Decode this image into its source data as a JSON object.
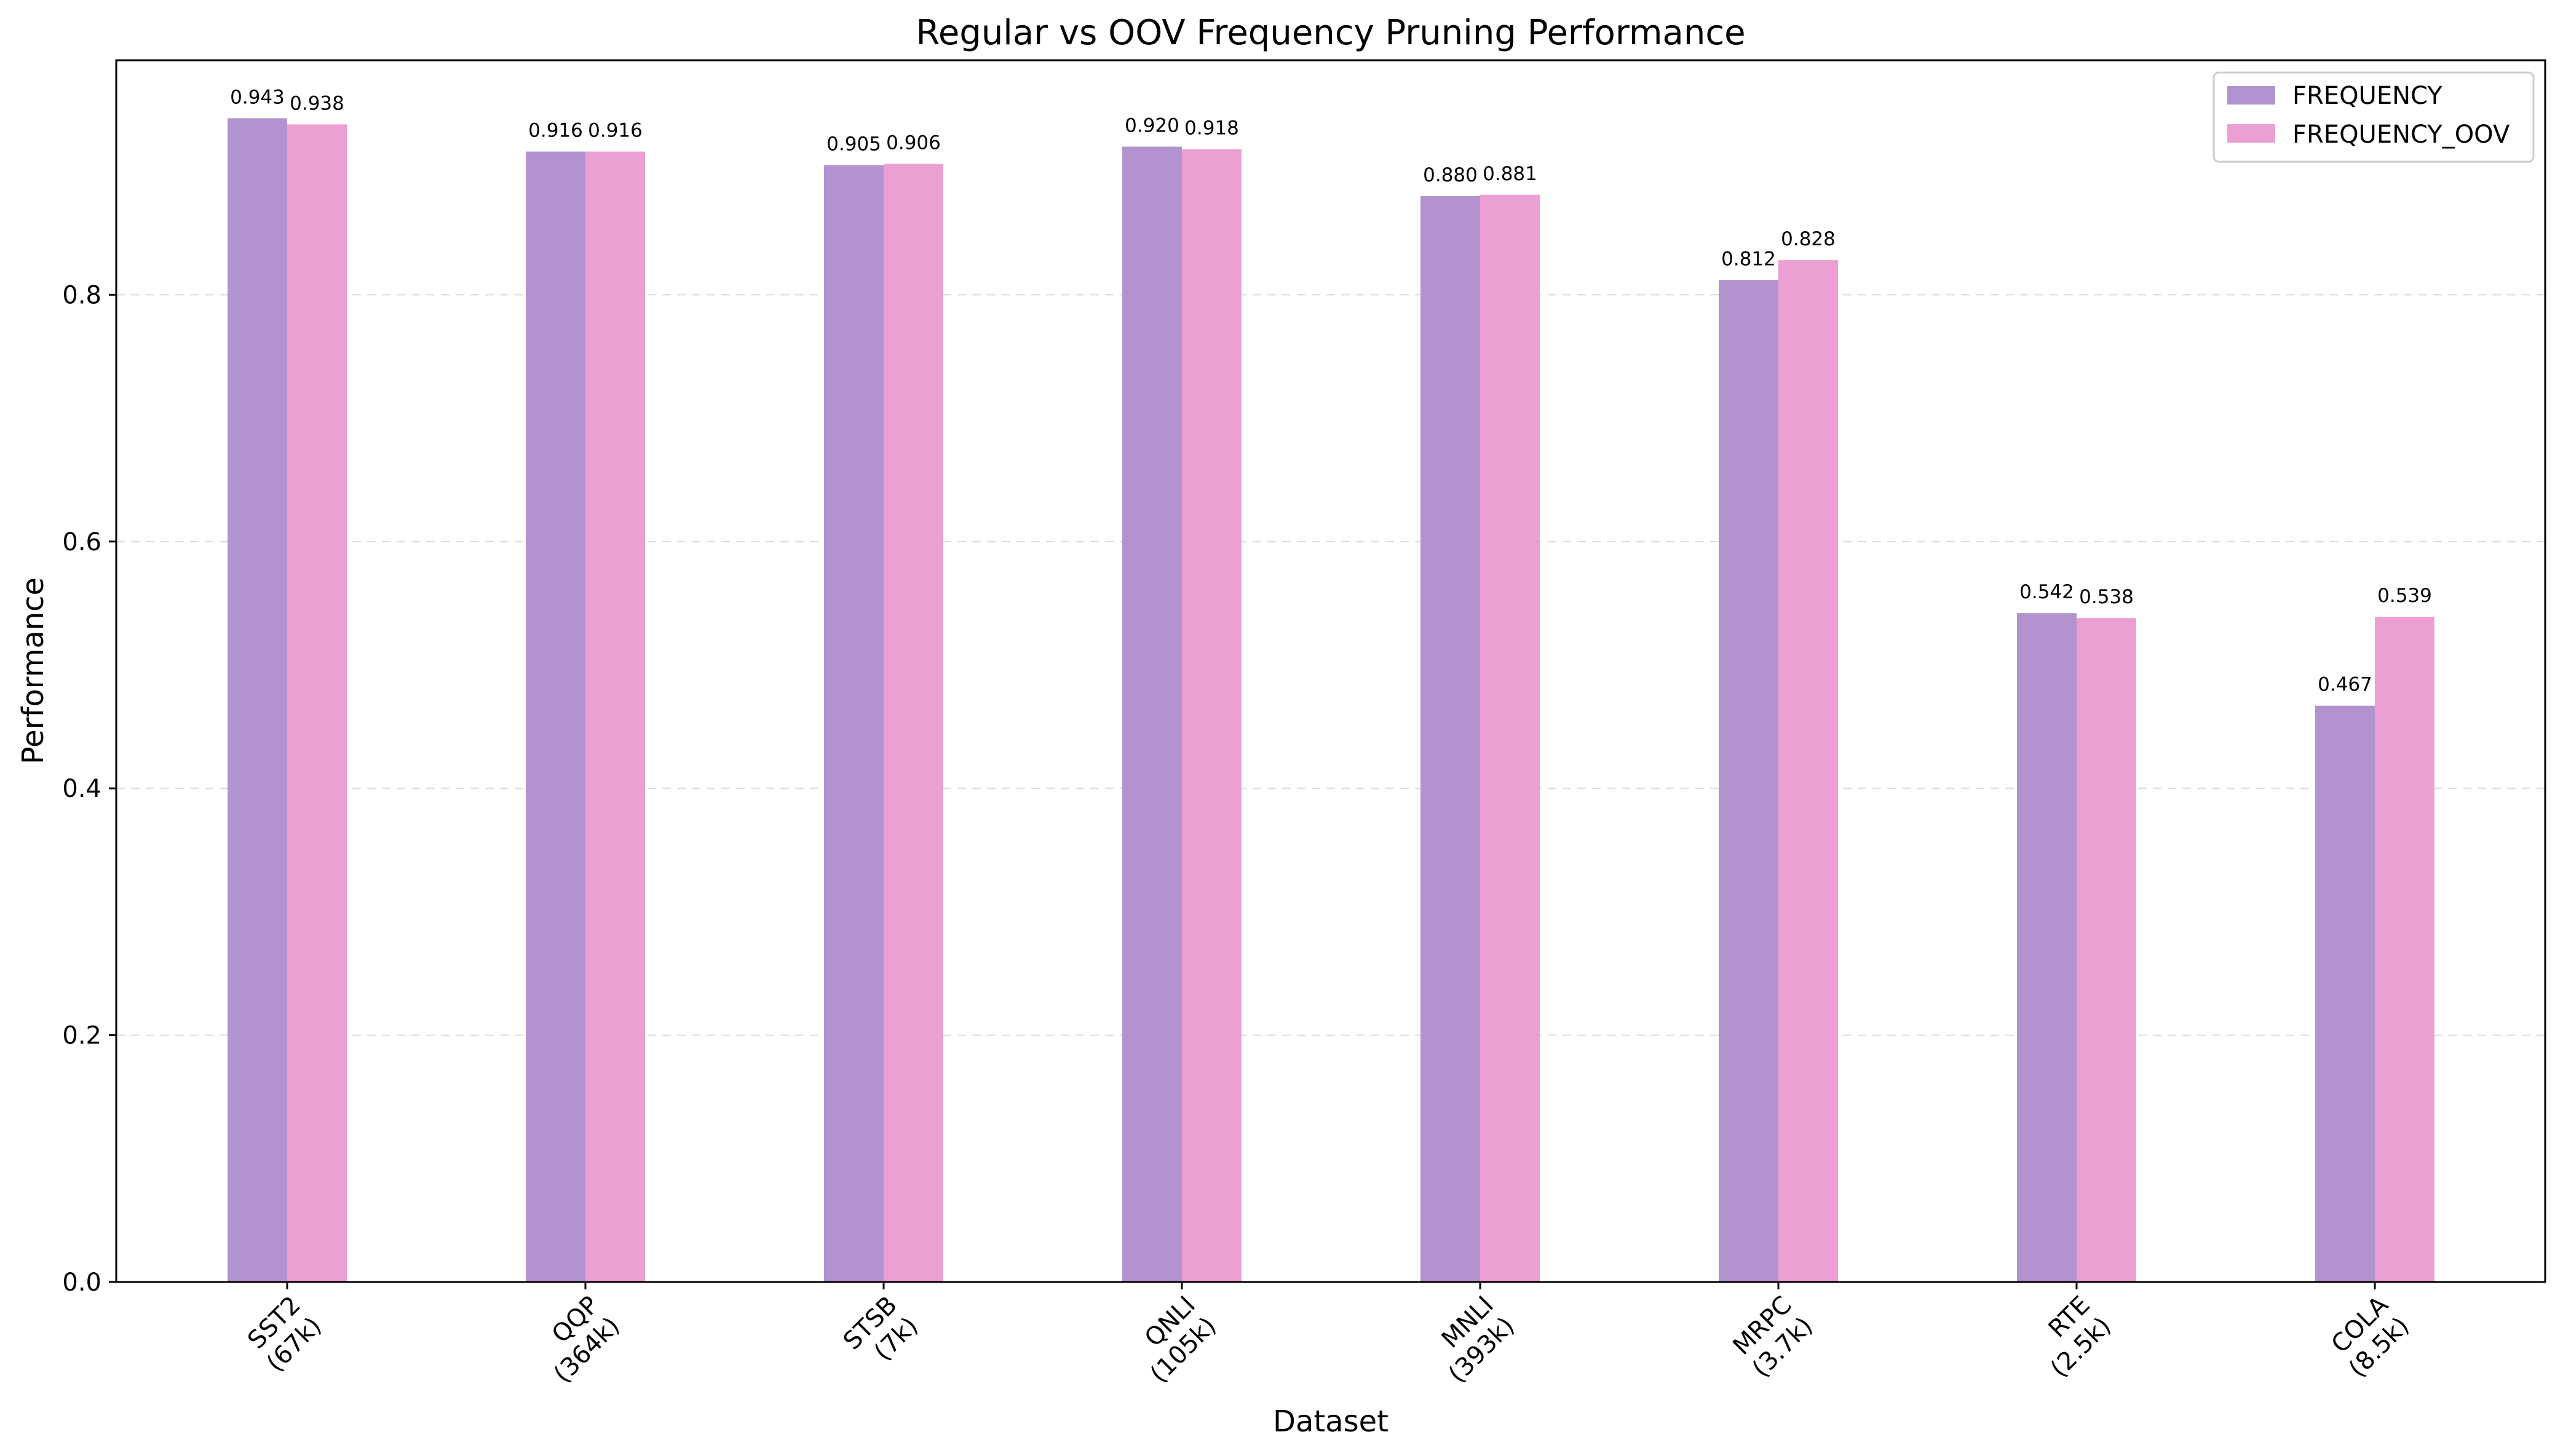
{
  "chart_data": {
    "type": "bar",
    "title": "Regular vs OOV Frequency Pruning Performance",
    "xlabel": "Dataset",
    "ylabel": "Performance",
    "ylim": [
      0,
      0.99
    ],
    "yticks": [
      "0.0",
      "0.2",
      "0.4",
      "0.6",
      "0.8"
    ],
    "grid": "y-dashed",
    "legend_position": "top-right",
    "categories": [
      [
        "SST2",
        "(67k)"
      ],
      [
        "QQP",
        "(364k)"
      ],
      [
        "STSB",
        "(7k)"
      ],
      [
        "QNLI",
        "(105k)"
      ],
      [
        "MNLI",
        "(393k)"
      ],
      [
        "MRPC",
        "(3.7k)"
      ],
      [
        "RTE",
        "(2.5k)"
      ],
      [
        "COLA",
        "(8.5k)"
      ]
    ],
    "series": [
      {
        "name": "FREQUENCY",
        "color": "#b393cf",
        "values": [
          0.943,
          0.916,
          0.905,
          0.92,
          0.88,
          0.812,
          0.542,
          0.467
        ],
        "labels": [
          "0.943",
          "0.916",
          "0.905",
          "0.920",
          "0.880",
          "0.812",
          "0.542",
          "0.467"
        ]
      },
      {
        "name": "FREQUENCY_OOV",
        "color": "#eb9fd3",
        "values": [
          0.938,
          0.916,
          0.906,
          0.918,
          0.881,
          0.828,
          0.538,
          0.539
        ],
        "labels": [
          "0.938",
          "0.916",
          "0.906",
          "0.918",
          "0.881",
          "0.828",
          "0.538",
          "0.539"
        ]
      }
    ]
  }
}
